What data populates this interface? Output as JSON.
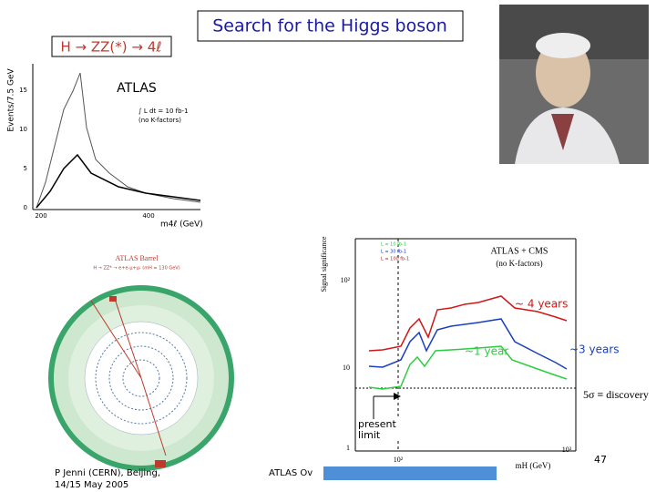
{
  "title": "Search for the Higgs boson",
  "left_plot": {
    "process": "H → ZZ(*) → 4ℓ",
    "experiment": "ATLAS",
    "y_label": "Events/7.5 GeV",
    "lumi": "∫ L dt = 10 fb-1",
    "note": "(no K-factors)",
    "yticks": [
      "0",
      "5",
      "10",
      "15"
    ],
    "xticks": [
      "200",
      "400"
    ],
    "x_label": "m4ℓ (GeV)"
  },
  "event_display": {
    "title": "ATLAS Barrel",
    "subtitle": "H → ZZ* → e+e-μ+μ- (mH = 130 GeV)"
  },
  "significance_plot": {
    "y_label": "Signal significance",
    "legend": [
      "L = 10 fb-1",
      "L = 30 fb-1",
      "L = 100 fb-1"
    ],
    "experiment": "ATLAS + CMS",
    "note": "(no K-factors)",
    "yticks": [
      "1",
      "10",
      "10²"
    ],
    "xticks": [
      "10²",
      "10³"
    ],
    "x_label": "mH (GeV)"
  },
  "annotations": {
    "four_years": "~ 4 years",
    "one_year": "~1 year",
    "three_years": "~3 years",
    "discovery": "5σ ≡ discovery",
    "present_limit": "present limit"
  },
  "footer": {
    "author": "P Jenni (CERN), Beijing,",
    "date": "14/15 May 2005",
    "event": "ATLAS Ov",
    "page": "47"
  }
}
